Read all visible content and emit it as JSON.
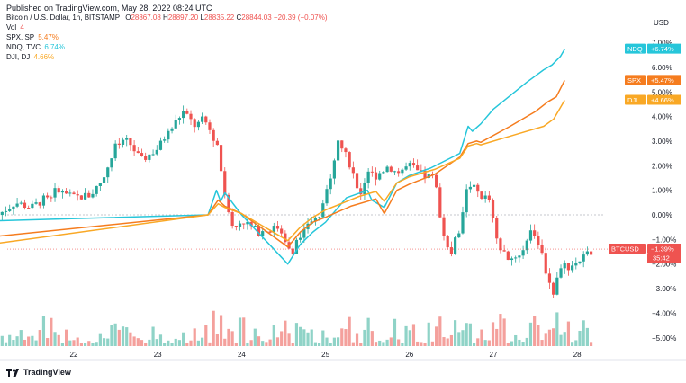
{
  "header": {
    "published": "Published on TradingView.com, May 28, 2022 08:24 UTC"
  },
  "symbol": {
    "title": "Bitcoin / U.S. Dollar, 1h, BITSTAMP",
    "o_label": "O",
    "o": "28867.08",
    "h_label": "H",
    "h": "28897.20",
    "l_label": "L",
    "l": "28835.22",
    "c_label": "C",
    "c": "28844.03",
    "change": "−20.39 (−0.07%)"
  },
  "legend": {
    "vol_label": "Vol",
    "vol_value": "4",
    "items": [
      {
        "label": "SPX, SP",
        "value": "5.47%",
        "color": "#f57c1e"
      },
      {
        "label": "NDQ, TVC",
        "value": "6.74%",
        "color": "#26c6da"
      },
      {
        "label": "DJI, DJ",
        "value": "4.66%",
        "color": "#f9a825"
      }
    ]
  },
  "footer": {
    "brand": "TradingView"
  },
  "colors": {
    "up": "#26a69a",
    "down": "#ef5350",
    "up_vol": "#8fd3c7",
    "down_vol": "#f4a09c"
  },
  "chart_data": {
    "type": "line",
    "title": "Bitcoin / U.S. Dollar, 1h, BITSTAMP",
    "y_axis": {
      "unit": "USD",
      "range": [
        -5.0,
        7.0
      ],
      "ticks": [
        "7.00%",
        "6.00%",
        "5.00%",
        "4.00%",
        "3.00%",
        "2.00%",
        "1.00%",
        "0.00%",
        "−1.00%",
        "−2.00%",
        "−3.00%",
        "−4.00%",
        "−5.00%"
      ]
    },
    "x_axis": {
      "ticks": [
        "22",
        "23",
        "24",
        "25",
        "26",
        "27",
        "28"
      ]
    },
    "badges": [
      {
        "label": "NDQ",
        "value": "+6.74%",
        "y": 6.74,
        "color": "#26c6da"
      },
      {
        "label": "SPX",
        "value": "+5.47%",
        "y": 5.47,
        "color": "#f57c1e"
      },
      {
        "label": "DJI",
        "value": "+4.66%",
        "y": 4.66,
        "color": "#f9a825"
      },
      {
        "label": "BTCUSD",
        "value": "−1.39%",
        "y": -1.39,
        "color": "#ef5350",
        "countdown": "35:42"
      }
    ],
    "series": [
      {
        "name": "NDQ",
        "color": "#26c6da",
        "points": [
          [
            21.0,
            -0.25
          ],
          [
            23.6,
            0.0
          ],
          [
            23.7,
            1.0
          ],
          [
            23.75,
            0.55
          ],
          [
            23.8,
            0.9
          ],
          [
            24.0,
            0.0
          ],
          [
            24.55,
            -2.0
          ],
          [
            24.7,
            -1.2
          ],
          [
            24.85,
            -0.7
          ],
          [
            25.0,
            -0.3
          ],
          [
            25.25,
            0.7
          ],
          [
            25.5,
            1.0
          ],
          [
            25.55,
            0.6
          ],
          [
            25.7,
            0.3
          ],
          [
            25.85,
            1.3
          ],
          [
            26.0,
            1.6
          ],
          [
            26.25,
            1.9
          ],
          [
            26.6,
            2.5
          ],
          [
            26.7,
            3.6
          ],
          [
            26.75,
            3.4
          ],
          [
            26.85,
            3.7
          ],
          [
            27.0,
            4.3
          ],
          [
            27.4,
            5.4
          ],
          [
            27.6,
            5.9
          ],
          [
            27.7,
            6.1
          ],
          [
            27.8,
            6.45
          ],
          [
            27.85,
            6.74
          ]
        ]
      },
      {
        "name": "SPX",
        "color": "#f57c1e",
        "points": [
          [
            21.0,
            -0.9
          ],
          [
            23.6,
            0.0
          ],
          [
            23.72,
            0.6
          ],
          [
            23.8,
            0.35
          ],
          [
            24.0,
            0.05
          ],
          [
            24.55,
            -1.3
          ],
          [
            24.7,
            -0.7
          ],
          [
            24.85,
            -0.3
          ],
          [
            25.0,
            -0.1
          ],
          [
            25.3,
            0.35
          ],
          [
            25.6,
            0.65
          ],
          [
            25.7,
            0.05
          ],
          [
            25.85,
            1.0
          ],
          [
            26.0,
            1.25
          ],
          [
            26.3,
            1.65
          ],
          [
            26.6,
            2.35
          ],
          [
            26.7,
            2.9
          ],
          [
            26.8,
            3.0
          ],
          [
            26.85,
            2.95
          ],
          [
            27.2,
            3.6
          ],
          [
            27.5,
            4.2
          ],
          [
            27.65,
            4.6
          ],
          [
            27.75,
            4.8
          ],
          [
            27.85,
            5.47
          ]
        ]
      },
      {
        "name": "DJI",
        "color": "#f9a825",
        "points": [
          [
            21.0,
            -1.2
          ],
          [
            23.6,
            0.0
          ],
          [
            23.72,
            0.45
          ],
          [
            23.8,
            0.3
          ],
          [
            24.0,
            0.05
          ],
          [
            24.55,
            -1.05
          ],
          [
            24.7,
            -0.5
          ],
          [
            24.85,
            -0.1
          ],
          [
            25.0,
            0.2
          ],
          [
            25.4,
            0.75
          ],
          [
            25.6,
            0.95
          ],
          [
            25.7,
            0.55
          ],
          [
            25.85,
            1.3
          ],
          [
            26.0,
            1.55
          ],
          [
            26.3,
            1.85
          ],
          [
            26.6,
            2.3
          ],
          [
            26.7,
            2.8
          ],
          [
            26.8,
            2.9
          ],
          [
            26.85,
            2.85
          ],
          [
            27.3,
            3.3
          ],
          [
            27.6,
            3.6
          ],
          [
            27.72,
            3.9
          ],
          [
            27.85,
            4.66
          ]
        ]
      },
      {
        "name": "BTCUSD",
        "color": "#ef5350",
        "points": [
          [
            21.1,
            0.0
          ],
          [
            21.3,
            0.5
          ],
          [
            21.5,
            0.3
          ],
          [
            21.8,
            1.0
          ],
          [
            22.0,
            0.7
          ],
          [
            22.2,
            0.8
          ],
          [
            22.35,
            1.5
          ],
          [
            22.5,
            2.8
          ],
          [
            22.65,
            3.0
          ],
          [
            22.8,
            2.2
          ],
          [
            23.0,
            2.7
          ],
          [
            23.1,
            3.2
          ],
          [
            23.3,
            4.2
          ],
          [
            23.45,
            3.6
          ],
          [
            23.55,
            3.9
          ],
          [
            23.7,
            2.9
          ],
          [
            23.75,
            2.0
          ],
          [
            23.8,
            0.7
          ],
          [
            23.9,
            -0.6
          ],
          [
            24.0,
            -0.2
          ],
          [
            24.2,
            -0.7
          ],
          [
            24.45,
            -0.5
          ],
          [
            24.6,
            -1.5
          ],
          [
            24.75,
            -0.4
          ],
          [
            24.95,
            0.0
          ],
          [
            25.05,
            1.5
          ],
          [
            25.15,
            3.0
          ],
          [
            25.3,
            2.0
          ],
          [
            25.4,
            0.7
          ],
          [
            25.5,
            1.7
          ],
          [
            25.6,
            1.6
          ],
          [
            25.75,
            2.0
          ],
          [
            25.85,
            1.7
          ],
          [
            26.0,
            2.0
          ],
          [
            26.15,
            1.6
          ],
          [
            26.3,
            1.5
          ],
          [
            26.4,
            -0.8
          ],
          [
            26.5,
            -1.5
          ],
          [
            26.6,
            -0.5
          ],
          [
            26.7,
            1.3
          ],
          [
            26.85,
            0.8
          ],
          [
            26.95,
            0.6
          ],
          [
            27.05,
            -1.3
          ],
          [
            27.2,
            -1.8
          ],
          [
            27.35,
            -1.5
          ],
          [
            27.45,
            -0.5
          ],
          [
            27.55,
            -1.2
          ],
          [
            27.65,
            -2.6
          ],
          [
            27.72,
            -3.2
          ],
          [
            27.8,
            -2.0
          ],
          [
            27.9,
            -2.1
          ],
          [
            28.05,
            -1.8
          ],
          [
            28.2,
            -1.35
          ]
        ]
      }
    ],
    "grid": true
  }
}
